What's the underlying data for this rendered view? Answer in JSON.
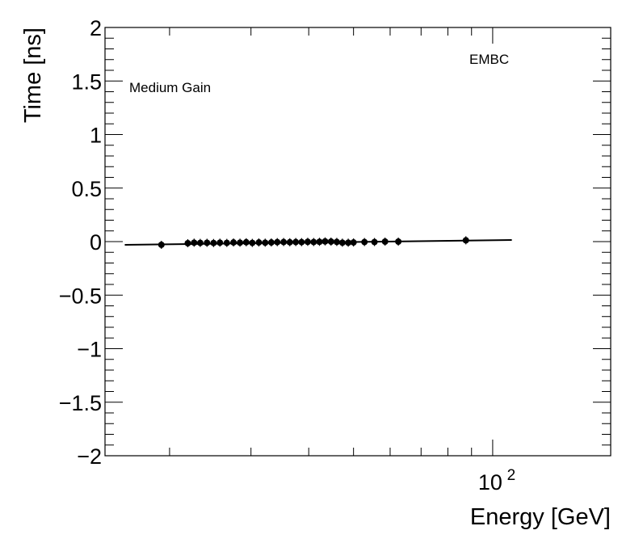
{
  "chart_data": {
    "type": "scatter",
    "xlabel": "Energy [GeV]",
    "ylabel": "Time [ns]",
    "xscale": "log",
    "xlim": [
      14.5,
      180
    ],
    "ylim": [
      -2,
      2
    ],
    "grid": false,
    "legend": "none",
    "annotations": [
      "Medium Gain",
      "EMBC"
    ],
    "x_tick_labels": [
      {
        "value": 100,
        "base": "10",
        "exp": "2"
      }
    ],
    "y_tick_labels": [
      "2",
      "1.5",
      "1",
      "0.5",
      "0",
      "−0.5",
      "−1",
      "−1.5",
      "−2"
    ],
    "y_tick_values": [
      2,
      1.5,
      1,
      0.5,
      0,
      -0.5,
      -1,
      -1.5,
      -2
    ],
    "series": [
      {
        "marker": "circle",
        "color": "#000000",
        "points": [
          [
            19.2,
            -0.03
          ],
          [
            21.9,
            -0.015
          ],
          [
            22.6,
            -0.01
          ],
          [
            23.3,
            -0.012
          ],
          [
            24.1,
            -0.011
          ],
          [
            24.9,
            -0.013
          ],
          [
            25.7,
            -0.01
          ],
          [
            26.6,
            -0.012
          ],
          [
            27.5,
            -0.008
          ],
          [
            28.4,
            -0.01
          ],
          [
            29.3,
            -0.006
          ],
          [
            30.2,
            -0.012
          ],
          [
            31.2,
            -0.008
          ],
          [
            32.2,
            -0.01
          ],
          [
            33.2,
            -0.008
          ],
          [
            34.2,
            -0.005
          ],
          [
            35.3,
            -0.004
          ],
          [
            36.4,
            -0.006
          ],
          [
            37.5,
            -0.004
          ],
          [
            38.6,
            -0.005
          ],
          [
            39.8,
            -0.002
          ],
          [
            41.0,
            -0.004
          ],
          [
            42.2,
            -0.002
          ],
          [
            43.4,
            0.002
          ],
          [
            44.7,
            0.0
          ],
          [
            46.0,
            -0.003
          ],
          [
            47.3,
            -0.01
          ],
          [
            48.7,
            -0.01
          ],
          [
            50.0,
            -0.008
          ],
          [
            52.8,
            -0.004
          ],
          [
            55.5,
            -0.004
          ],
          [
            58.5,
            0.0
          ],
          [
            62.5,
            0.0
          ],
          [
            87.5,
            0.012
          ]
        ]
      }
    ],
    "fit_line": {
      "x": [
        16.0,
        110.0
      ],
      "y": [
        -0.03,
        0.015
      ]
    }
  }
}
